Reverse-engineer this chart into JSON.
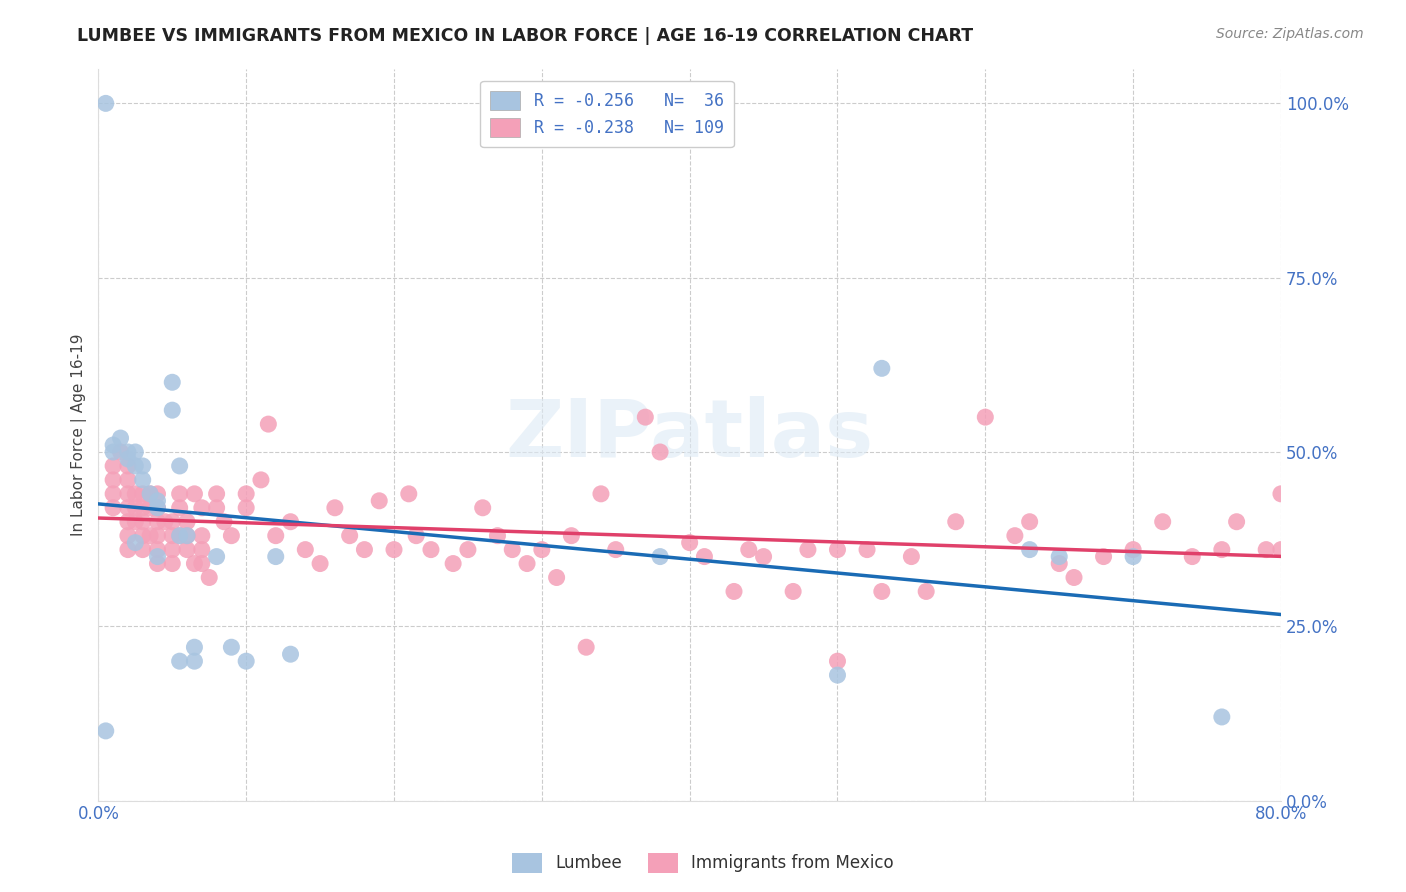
{
  "title": "LUMBEE VS IMMIGRANTS FROM MEXICO IN LABOR FORCE | AGE 16-19 CORRELATION CHART",
  "source": "Source: ZipAtlas.com",
  "ylabel": "In Labor Force | Age 16-19",
  "xlim": [
    0.0,
    0.8
  ],
  "ylim": [
    0.0,
    1.05
  ],
  "yticks": [
    0.0,
    0.25,
    0.5,
    0.75,
    1.0
  ],
  "ytick_labels": [
    "0.0%",
    "25.0%",
    "50.0%",
    "75.0%",
    "100.0%"
  ],
  "xticks": [
    0.0,
    0.1,
    0.2,
    0.3,
    0.4,
    0.5,
    0.6,
    0.7,
    0.8
  ],
  "xtick_labels": [
    "0.0%",
    "",
    "",
    "",
    "",
    "",
    "",
    "",
    "80.0%"
  ],
  "lumbee_color": "#a8c4e0",
  "mexico_color": "#f4a0b8",
  "lumbee_line_color": "#1a6bb5",
  "mexico_line_color": "#e0406a",
  "tick_label_color": "#4472c4",
  "lumbee_x": [
    0.005,
    0.01,
    0.01,
    0.015,
    0.02,
    0.02,
    0.025,
    0.025,
    0.025,
    0.03,
    0.03,
    0.035,
    0.04,
    0.04,
    0.04,
    0.05,
    0.05,
    0.055,
    0.055,
    0.055,
    0.06,
    0.065,
    0.065,
    0.08,
    0.09,
    0.1,
    0.12,
    0.13,
    0.38,
    0.5,
    0.53,
    0.63,
    0.65,
    0.7,
    0.76,
    0.005
  ],
  "lumbee_y": [
    1.0,
    0.5,
    0.51,
    0.52,
    0.5,
    0.49,
    0.48,
    0.5,
    0.37,
    0.48,
    0.46,
    0.44,
    0.43,
    0.42,
    0.35,
    0.6,
    0.56,
    0.48,
    0.38,
    0.2,
    0.38,
    0.22,
    0.2,
    0.35,
    0.22,
    0.2,
    0.35,
    0.21,
    0.35,
    0.18,
    0.62,
    0.36,
    0.35,
    0.35,
    0.12,
    0.1
  ],
  "mexico_x": [
    0.01,
    0.01,
    0.01,
    0.01,
    0.015,
    0.02,
    0.02,
    0.02,
    0.02,
    0.02,
    0.02,
    0.02,
    0.025,
    0.025,
    0.025,
    0.03,
    0.03,
    0.03,
    0.03,
    0.03,
    0.035,
    0.035,
    0.035,
    0.04,
    0.04,
    0.04,
    0.04,
    0.04,
    0.04,
    0.045,
    0.05,
    0.05,
    0.05,
    0.05,
    0.055,
    0.055,
    0.055,
    0.06,
    0.06,
    0.06,
    0.065,
    0.065,
    0.07,
    0.07,
    0.07,
    0.07,
    0.075,
    0.08,
    0.08,
    0.085,
    0.09,
    0.1,
    0.1,
    0.11,
    0.115,
    0.12,
    0.13,
    0.14,
    0.15,
    0.16,
    0.17,
    0.18,
    0.19,
    0.2,
    0.21,
    0.215,
    0.225,
    0.24,
    0.25,
    0.26,
    0.27,
    0.28,
    0.29,
    0.3,
    0.31,
    0.32,
    0.33,
    0.34,
    0.35,
    0.37,
    0.38,
    0.4,
    0.41,
    0.43,
    0.44,
    0.45,
    0.47,
    0.48,
    0.5,
    0.5,
    0.52,
    0.53,
    0.55,
    0.56,
    0.58,
    0.6,
    0.62,
    0.63,
    0.65,
    0.66,
    0.68,
    0.7,
    0.72,
    0.74,
    0.76,
    0.77,
    0.79,
    0.8,
    0.8
  ],
  "mexico_y": [
    0.44,
    0.46,
    0.48,
    0.42,
    0.5,
    0.44,
    0.46,
    0.48,
    0.4,
    0.38,
    0.36,
    0.42,
    0.44,
    0.42,
    0.4,
    0.44,
    0.42,
    0.4,
    0.38,
    0.36,
    0.44,
    0.42,
    0.38,
    0.42,
    0.4,
    0.38,
    0.36,
    0.44,
    0.34,
    0.4,
    0.4,
    0.38,
    0.36,
    0.34,
    0.44,
    0.42,
    0.38,
    0.4,
    0.38,
    0.36,
    0.34,
    0.44,
    0.42,
    0.38,
    0.36,
    0.34,
    0.32,
    0.44,
    0.42,
    0.4,
    0.38,
    0.42,
    0.44,
    0.46,
    0.54,
    0.38,
    0.4,
    0.36,
    0.34,
    0.42,
    0.38,
    0.36,
    0.43,
    0.36,
    0.44,
    0.38,
    0.36,
    0.34,
    0.36,
    0.42,
    0.38,
    0.36,
    0.34,
    0.36,
    0.32,
    0.38,
    0.22,
    0.44,
    0.36,
    0.55,
    0.5,
    0.37,
    0.35,
    0.3,
    0.36,
    0.35,
    0.3,
    0.36,
    0.2,
    0.36,
    0.36,
    0.3,
    0.35,
    0.3,
    0.4,
    0.55,
    0.38,
    0.4,
    0.34,
    0.32,
    0.35,
    0.36,
    0.4,
    0.35,
    0.36,
    0.4,
    0.36,
    0.44,
    0.36
  ]
}
